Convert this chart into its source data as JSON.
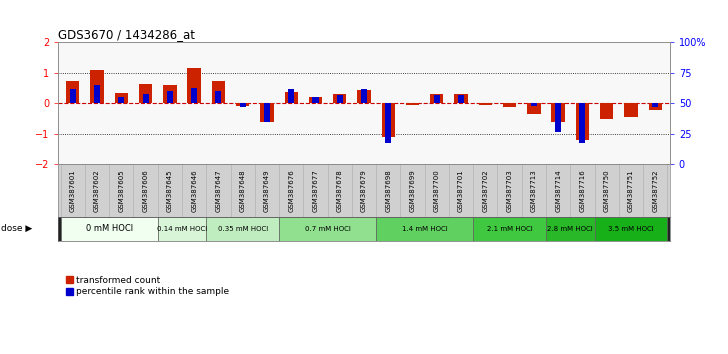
{
  "title": "GDS3670 / 1434286_at",
  "samples": [
    "GSM387601",
    "GSM387602",
    "GSM387605",
    "GSM387606",
    "GSM387645",
    "GSM387646",
    "GSM387647",
    "GSM387648",
    "GSM387649",
    "GSM387676",
    "GSM387677",
    "GSM387678",
    "GSM387679",
    "GSM387698",
    "GSM387699",
    "GSM387700",
    "GSM387701",
    "GSM387702",
    "GSM387703",
    "GSM387713",
    "GSM387714",
    "GSM387716",
    "GSM387750",
    "GSM387751",
    "GSM387752"
  ],
  "transformed_count": [
    0.75,
    1.1,
    0.35,
    0.65,
    0.6,
    1.15,
    0.75,
    -0.08,
    -0.6,
    0.38,
    0.22,
    0.3,
    0.45,
    -1.1,
    -0.05,
    0.3,
    0.3,
    -0.05,
    -0.1,
    -0.35,
    -0.6,
    -1.2,
    -0.5,
    -0.45,
    -0.22
  ],
  "percentile_rank": [
    62,
    65,
    55,
    58,
    60,
    63,
    60,
    47,
    35,
    62,
    55,
    57,
    62,
    18,
    50,
    57,
    57,
    50,
    50,
    48,
    27,
    18,
    50,
    50,
    47
  ],
  "dose_groups": [
    {
      "label": "0 mM HOCl",
      "start": 0,
      "end": 3,
      "color": "#f0fff0"
    },
    {
      "label": "0.14 mM HOCl",
      "start": 4,
      "end": 5,
      "color": "#d8f5d8"
    },
    {
      "label": "0.35 mM HOCl",
      "start": 6,
      "end": 8,
      "color": "#c0edc0"
    },
    {
      "label": "0.7 mM HOCl",
      "start": 9,
      "end": 12,
      "color": "#90e090"
    },
    {
      "label": "1.4 mM HOCl",
      "start": 13,
      "end": 16,
      "color": "#60d060"
    },
    {
      "label": "2.1 mM HOCl",
      "start": 17,
      "end": 19,
      "color": "#40c840"
    },
    {
      "label": "2.8 mM HOCl",
      "start": 20,
      "end": 21,
      "color": "#28b828"
    },
    {
      "label": "3.5 mM HOCl",
      "start": 22,
      "end": 24,
      "color": "#18b018"
    }
  ],
  "bar_color_red": "#cc2200",
  "bar_color_blue": "#0000cc",
  "ylim_left": [
    -2,
    2
  ],
  "ylim_right": [
    0,
    100
  ],
  "yticks_left": [
    -2,
    -1,
    0,
    1,
    2
  ],
  "yticks_right": [
    0,
    25,
    50,
    75,
    100
  ],
  "ytick_labels_right": [
    "0",
    "25",
    "50",
    "75",
    "100%"
  ],
  "bg_color": "#ffffff",
  "plot_bg": "#f8f8f8",
  "label_red": "transformed count",
  "label_blue": "percentile rank within the sample",
  "xlabel_bg": "#d0d0d0"
}
